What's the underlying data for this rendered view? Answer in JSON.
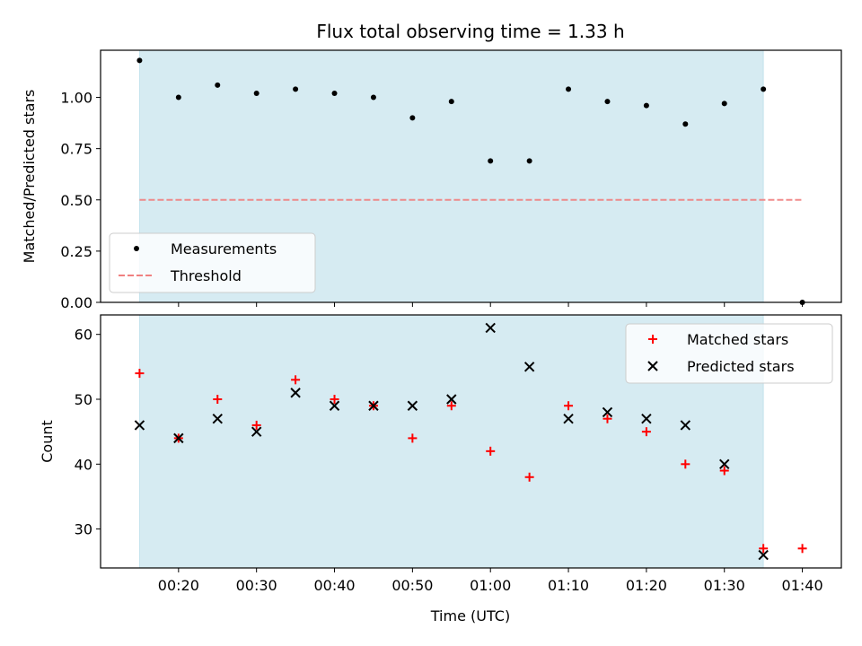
{
  "chart_data": {
    "type": "scatter",
    "title": "Flux total observing time = 1.33 h",
    "xlabel": "Time (UTC)",
    "x_ticks": [
      "00:20",
      "00:30",
      "00:40",
      "00:50",
      "01:00",
      "01:10",
      "01:20",
      "01:30",
      "01:40"
    ],
    "shaded_span": [
      "00:15",
      "01:35"
    ],
    "shade_color": "#add8e6",
    "panels": [
      {
        "ylabel": "Matched/Predicted stars",
        "ylim": [
          0,
          1.23
        ],
        "y_ticks": [
          "0.00",
          "0.25",
          "0.50",
          "0.75",
          "1.00"
        ],
        "legend_position": "lower-left",
        "series": [
          {
            "name": "Measurements",
            "marker": "dot",
            "color": "#000000",
            "x": [
              "00:15",
              "00:20",
              "00:25",
              "00:30",
              "00:35",
              "00:40",
              "00:45",
              "00:50",
              "00:55",
              "01:00",
              "01:05",
              "01:10",
              "01:15",
              "01:20",
              "01:25",
              "01:30",
              "01:35",
              "01:40"
            ],
            "y": [
              1.18,
              1.0,
              1.06,
              1.02,
              1.04,
              1.02,
              1.0,
              0.9,
              0.98,
              0.69,
              0.69,
              1.04,
              0.98,
              0.96,
              0.87,
              0.97,
              1.04,
              0.0
            ]
          },
          {
            "name": "Threshold",
            "type": "line",
            "style": "dashed",
            "color": "#f08080",
            "x": [
              "00:15",
              "01:40"
            ],
            "y": [
              0.5,
              0.5
            ]
          }
        ]
      },
      {
        "ylabel": "Count",
        "ylim": [
          24,
          63
        ],
        "y_ticks": [
          "30",
          "40",
          "50",
          "60"
        ],
        "legend_position": "upper-right",
        "series": [
          {
            "name": "Matched stars",
            "marker": "plus",
            "color": "#ff0000",
            "x": [
              "00:15",
              "00:20",
              "00:25",
              "00:30",
              "00:35",
              "00:40",
              "00:45",
              "00:50",
              "00:55",
              "01:00",
              "01:05",
              "01:10",
              "01:15",
              "01:20",
              "01:25",
              "01:30",
              "01:35",
              "01:40"
            ],
            "y": [
              54,
              44,
              50,
              46,
              53,
              50,
              49,
              44,
              49,
              42,
              38,
              49,
              47,
              45,
              40,
              39,
              27,
              27
            ]
          },
          {
            "name": "Predicted stars",
            "marker": "x",
            "color": "#000000",
            "x": [
              "00:15",
              "00:20",
              "00:25",
              "00:30",
              "00:35",
              "00:40",
              "00:45",
              "00:50",
              "00:55",
              "01:00",
              "01:05",
              "01:10",
              "01:15",
              "01:20",
              "01:25",
              "01:30",
              "01:35"
            ],
            "y": [
              46,
              44,
              47,
              45,
              51,
              49,
              49,
              49,
              50,
              61,
              55,
              47,
              48,
              47,
              46,
              40,
              26
            ]
          }
        ]
      }
    ]
  }
}
